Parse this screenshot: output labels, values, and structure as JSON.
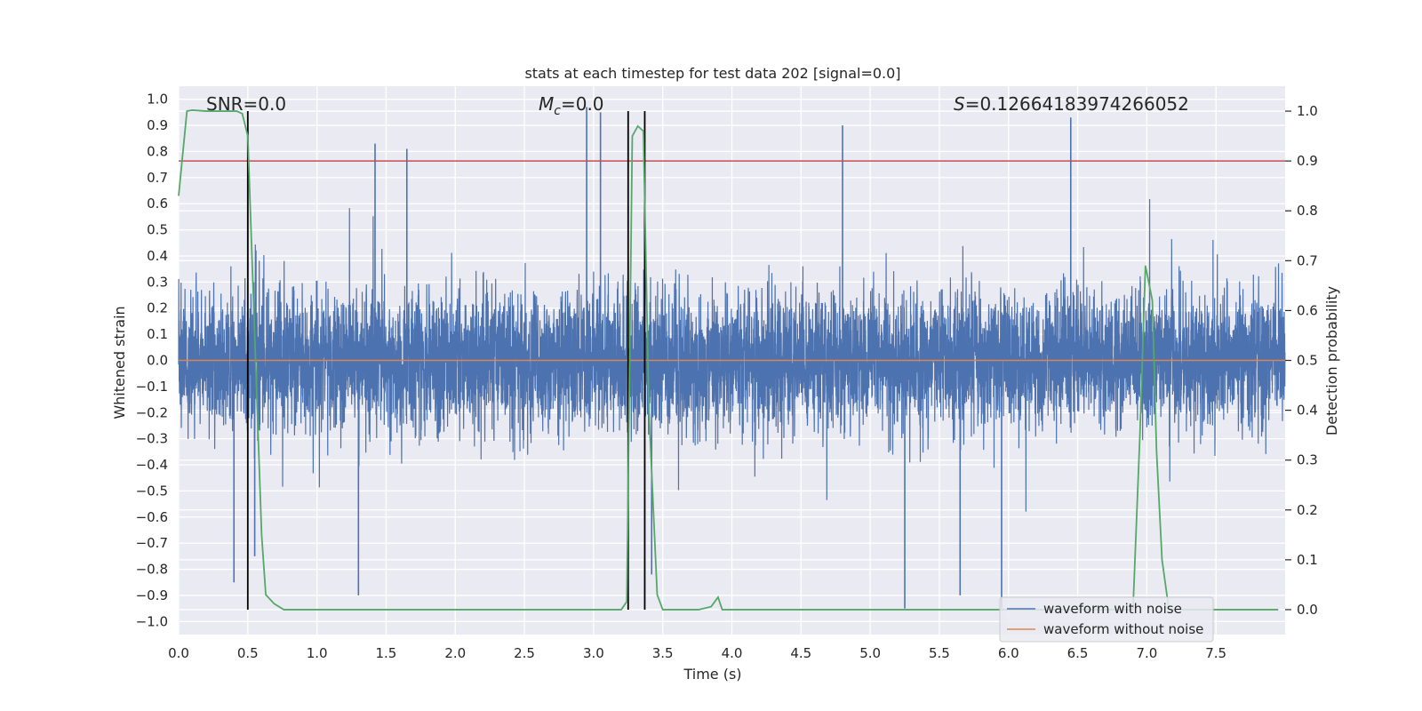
{
  "chart_data": {
    "type": "line",
    "title": "stats at each timestep for test data 202 [signal=0.0]",
    "xlabel": "Time (s)",
    "ylabel": "Whitened strain",
    "y2label": "Detection probability",
    "xlim": [
      0.0,
      8.0
    ],
    "ylim": [
      -1.05,
      1.05
    ],
    "y2lim": [
      -0.05,
      1.05
    ],
    "xticks": [
      "0.0",
      "0.5",
      "1.0",
      "1.5",
      "2.0",
      "2.5",
      "3.0",
      "3.5",
      "4.0",
      "4.5",
      "5.0",
      "5.5",
      "6.0",
      "6.5",
      "7.0",
      "7.5"
    ],
    "yticks": [
      "1.0",
      "0.9",
      "0.8",
      "0.7",
      "0.6",
      "0.5",
      "0.4",
      "0.3",
      "0.2",
      "0.1",
      "0.0",
      "−0.1",
      "−0.2",
      "−0.3",
      "−0.4",
      "−0.5",
      "−0.6",
      "−0.7",
      "−0.8",
      "−0.9",
      "−1.0"
    ],
    "y2ticks": [
      "1.0",
      "0.9",
      "0.8",
      "0.7",
      "0.6",
      "0.5",
      "0.4",
      "0.3",
      "0.2",
      "0.1",
      "0.0"
    ],
    "grid": true,
    "annotations": {
      "snr": "SNR=0.0",
      "mc_symbol": "M",
      "mc_sub": "c",
      "mc_value": "=0.0",
      "s_symbol": "S",
      "s_value": "=0.12664183974266052"
    },
    "threshold": {
      "axis": "right",
      "value": 0.9,
      "color": "#c44e52"
    },
    "vlines": [
      0.5,
      3.25,
      3.37
    ],
    "series": [
      {
        "name": "waveform with noise",
        "color": "#4c72b0",
        "axis": "left",
        "description": "dense noise trace, approx 8192 samples in [0,8) s",
        "seed": 202,
        "spikes": [
          {
            "x": 0.5,
            "y": 0.9
          },
          {
            "x": 0.4,
            "y": -0.85
          },
          {
            "x": 0.55,
            "y": -0.75
          },
          {
            "x": 1.3,
            "y": -0.9
          },
          {
            "x": 2.95,
            "y": 0.97
          },
          {
            "x": 3.05,
            "y": 0.95
          },
          {
            "x": 3.37,
            "y": 0.65
          },
          {
            "x": 3.42,
            "y": -0.82
          },
          {
            "x": 4.8,
            "y": 0.9
          },
          {
            "x": 5.25,
            "y": -0.95
          },
          {
            "x": 5.65,
            "y": -0.9
          },
          {
            "x": 5.95,
            "y": -0.95
          },
          {
            "x": 6.45,
            "y": 0.93
          },
          {
            "x": 1.42,
            "y": 0.83
          },
          {
            "x": 1.65,
            "y": 0.81
          }
        ]
      },
      {
        "name": "waveform without noise",
        "color": "#dd8452",
        "axis": "left",
        "x": [
          0.0,
          8.0
        ],
        "values": [
          0.0,
          0.0
        ]
      },
      {
        "name": "detection probability",
        "color": "#55a868",
        "axis": "right",
        "x": [
          0.0,
          0.06,
          0.1,
          0.2,
          0.35,
          0.42,
          0.46,
          0.5,
          0.55,
          0.6,
          0.63,
          0.69,
          0.76,
          0.85,
          1.0,
          3.2,
          3.24,
          3.28,
          3.32,
          3.36,
          3.4,
          3.46,
          3.5,
          3.6,
          3.76,
          3.85,
          3.9,
          3.93,
          4.0,
          6.9,
          6.95,
          6.99,
          7.04,
          7.07,
          7.11,
          7.16,
          7.2,
          7.3,
          7.95
        ],
        "values": [
          0.83,
          1.0,
          1.002,
          1.0,
          1.0,
          1.0,
          0.995,
          0.95,
          0.55,
          0.15,
          0.03,
          0.012,
          0.0,
          0.0,
          0.0,
          0.0,
          0.016,
          0.95,
          0.97,
          0.96,
          0.4,
          0.03,
          0.0,
          0.0,
          0.0,
          0.006,
          0.025,
          0.0,
          0.0,
          0.0,
          0.35,
          0.69,
          0.62,
          0.32,
          0.1,
          0.0,
          0.0,
          0.0,
          0.0
        ]
      }
    ],
    "legend": {
      "position": "lower-right",
      "entries": [
        "waveform with noise",
        "waveform without noise"
      ]
    }
  },
  "colors": {
    "axes_bg": "#eaeaf2",
    "grid": "#ffffff",
    "vline": "#000000"
  }
}
